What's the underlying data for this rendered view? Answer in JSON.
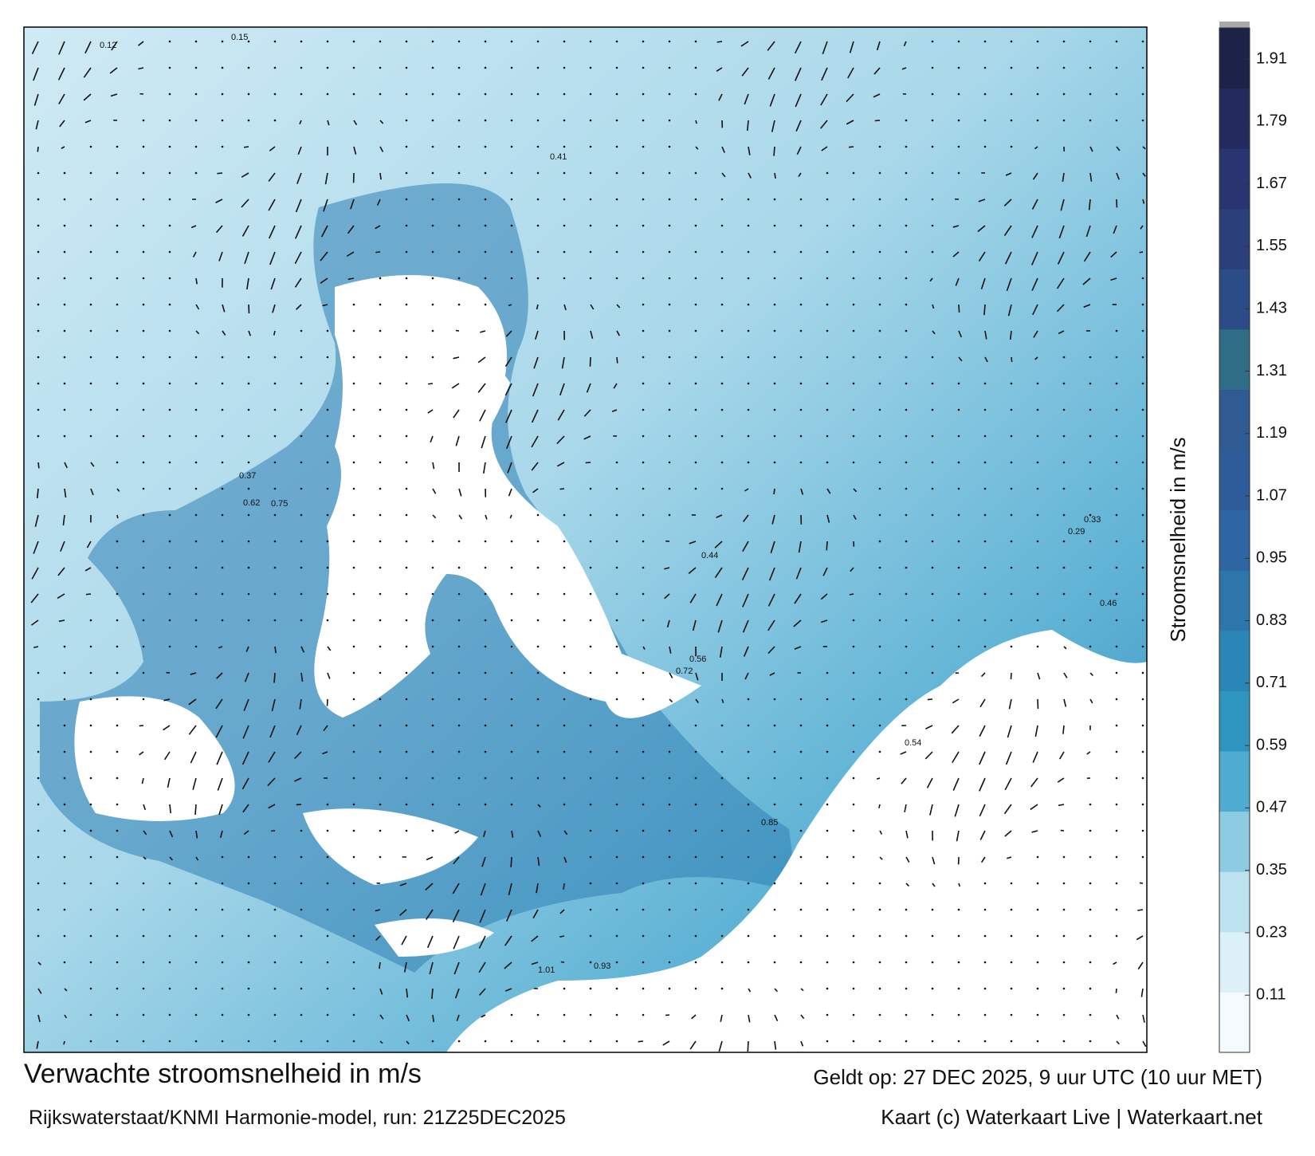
{
  "title": "Verwachte stroomsnelheid in m/s",
  "subtitle": "Rijkswaterstaat/KNMI Harmonie-model, run: 21Z25DEC2025",
  "valid_time": "Geldt op: 27 DEC 2025, 9 uur UTC (10 uur MET)",
  "credit": "Kaart (c) Waterkaart Live | Waterkaart.net",
  "colorbar": {
    "label": "Stroomsnelheid in m/s",
    "lim": [
      0,
      1.97
    ],
    "ticks": [
      0.11,
      0.23,
      0.35,
      0.47,
      0.59,
      0.71,
      0.83,
      0.95,
      1.07,
      1.19,
      1.31,
      1.43,
      1.55,
      1.67,
      1.79,
      1.91
    ],
    "colors": [
      "#f4fafd",
      "#dcf0f7",
      "#bde3f0",
      "#8ccbe2",
      "#4fabd0",
      "#2e95c0",
      "#2a86b6",
      "#2c76ac",
      "#2d66a2",
      "#2e5b99",
      "#2f5a92",
      "#2f6d86",
      "#2b4c86",
      "#2b3f7a",
      "#283570",
      "#232b5e",
      "#1c2248"
    ]
  },
  "map_labels": [
    "0.12",
    "0.15",
    "0.41",
    "0.37",
    "0.62",
    "0.75",
    "0.56",
    "0.72",
    "0.85",
    "0.54",
    "0.93",
    "1.01",
    "0.33",
    "0.44",
    "0.29",
    "0.46"
  ]
}
